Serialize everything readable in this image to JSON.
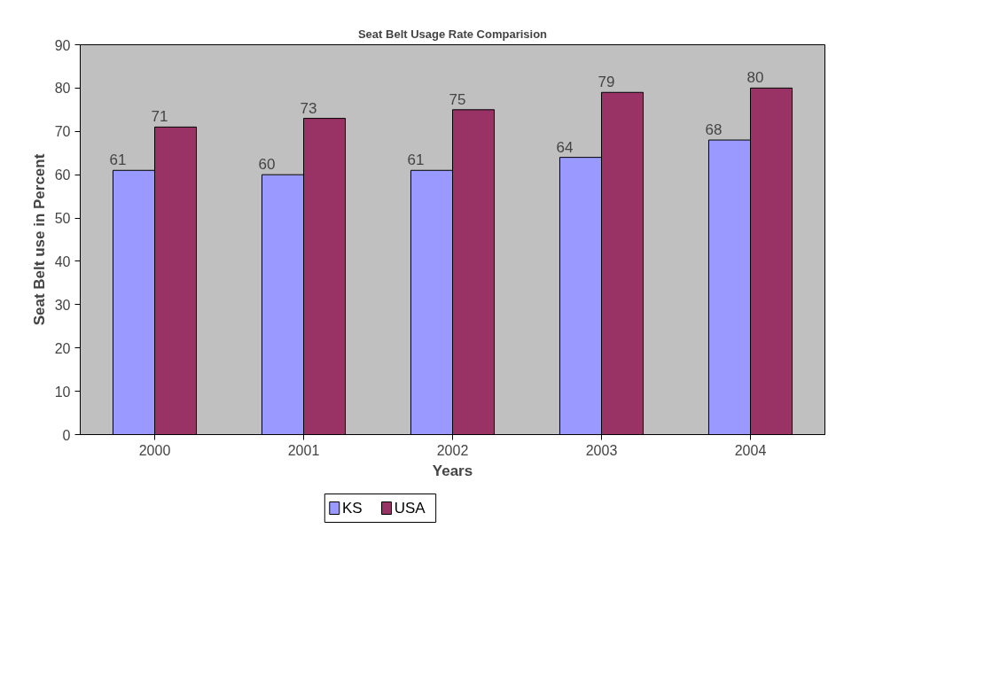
{
  "chart_data": {
    "type": "bar",
    "title": "Seat Belt Usage Rate Comparision",
    "xlabel": "Years",
    "ylabel": "Seat Belt use in Percent",
    "categories": [
      "2000",
      "2001",
      "2002",
      "2003",
      "2004"
    ],
    "series": [
      {
        "name": "KS",
        "color": "#9999ff",
        "values": [
          61,
          60,
          61,
          64,
          68
        ]
      },
      {
        "name": "USA",
        "color": "#993366",
        "values": [
          71,
          73,
          75,
          79,
          80
        ]
      }
    ],
    "ylim": [
      0,
      90
    ],
    "yticks": [
      0,
      10,
      20,
      30,
      40,
      50,
      60,
      70,
      80,
      90
    ],
    "grid": false,
    "legend": "bottom",
    "data_labels": true
  }
}
